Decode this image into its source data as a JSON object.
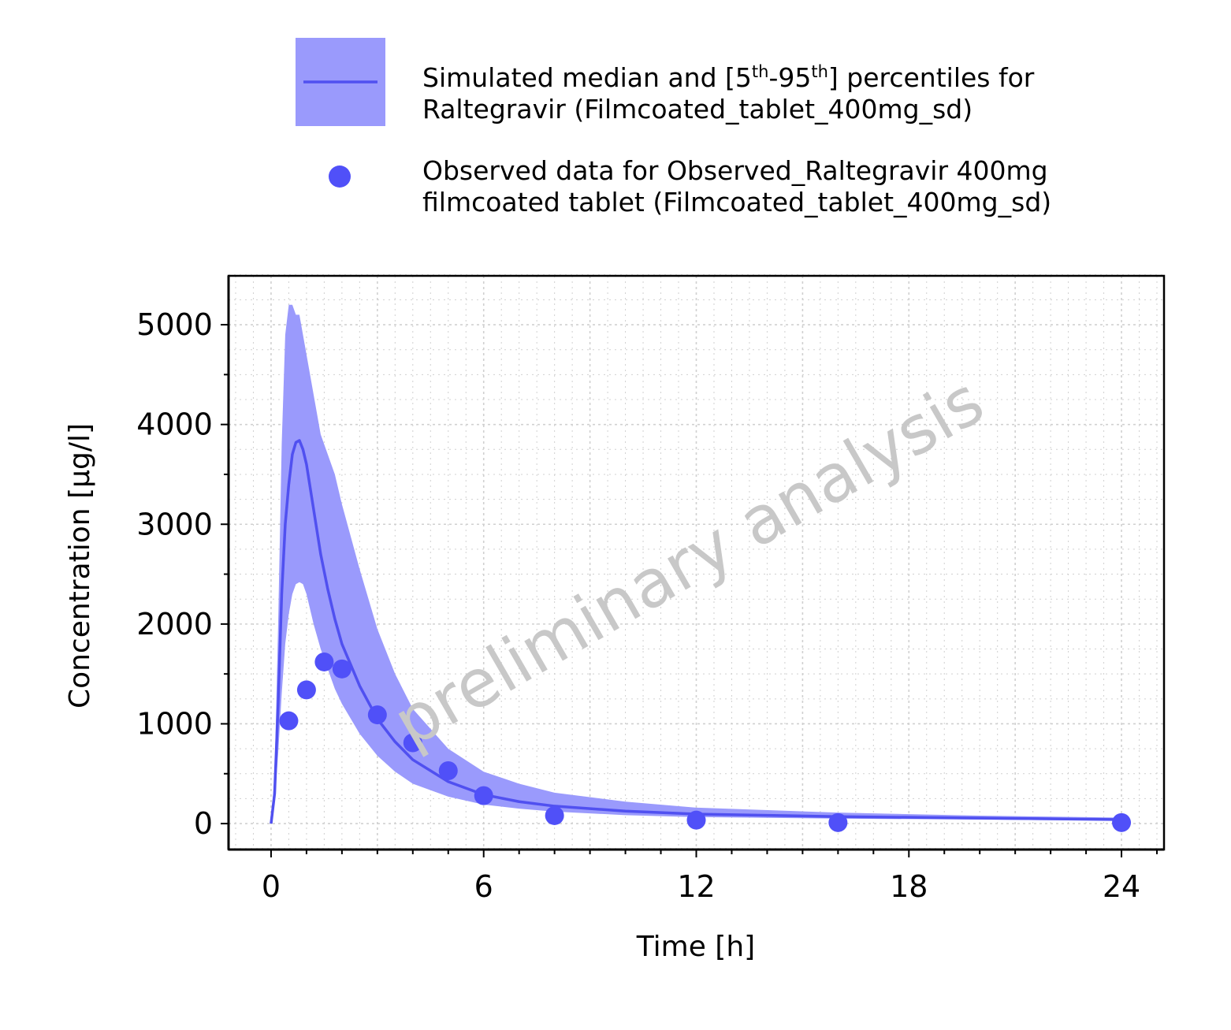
{
  "chart_data": {
    "type": "line",
    "xlabel": "Time [h]",
    "ylabel": "Concentration [µg/l]",
    "xlim": [
      -1.2,
      25.2
    ],
    "ylim": [
      -260,
      5490
    ],
    "x_ticks": [
      0,
      6,
      12,
      18,
      24
    ],
    "y_ticks": [
      0,
      1000,
      2000,
      3000,
      4000,
      5000
    ],
    "grid": true,
    "legend_position": "top",
    "watermark": "preliminary analysis",
    "legend": [
      {
        "kind": "band-line",
        "text_lines": [
          "Simulated median and [5",
          "th",
          "-95",
          "th",
          "] percentiles for",
          "Raltegravir (Filmcoated_tablet_400mg_sd)"
        ]
      },
      {
        "kind": "point",
        "text_lines": [
          "Observed data for Observed_Raltegravir 400mg",
          "filmcoated tablet (Filmcoated_tablet_400mg_sd)"
        ]
      }
    ],
    "colors": {
      "line": "#5050f0",
      "band": "#9a9afc",
      "points": "#5050f8",
      "grid": "#d0d0d0"
    },
    "series": [
      {
        "kind": "median",
        "x": [
          0,
          0.1,
          0.2,
          0.3,
          0.4,
          0.5,
          0.6,
          0.7,
          0.8,
          0.9,
          1.0,
          1.2,
          1.4,
          1.6,
          1.8,
          2.0,
          2.5,
          3.0,
          3.5,
          4.0,
          5.0,
          6.0,
          7.0,
          8.0,
          10.0,
          12.0,
          16.0,
          20.0,
          24.0
        ],
        "y": [
          0,
          300,
          1200,
          2300,
          3000,
          3400,
          3700,
          3820,
          3840,
          3750,
          3600,
          3150,
          2700,
          2350,
          2050,
          1800,
          1380,
          1050,
          820,
          640,
          420,
          290,
          220,
          175,
          125,
          95,
          70,
          55,
          40
        ]
      },
      {
        "kind": "p95",
        "x": [
          0,
          0.1,
          0.2,
          0.3,
          0.4,
          0.5,
          0.6,
          0.7,
          0.8,
          0.9,
          1.0,
          1.2,
          1.4,
          1.6,
          1.8,
          2.0,
          2.5,
          3.0,
          3.5,
          4.0,
          5.0,
          6.0,
          7.0,
          8.0,
          10.0,
          12.0,
          16.0,
          20.0,
          24.0
        ],
        "y": [
          0,
          500,
          2000,
          3800,
          4900,
          5200,
          5200,
          5100,
          5100,
          4900,
          4700,
          4300,
          3900,
          3700,
          3500,
          3200,
          2550,
          1950,
          1500,
          1150,
          750,
          520,
          400,
          310,
          220,
          160,
          110,
          80,
          60
        ]
      },
      {
        "kind": "p5",
        "x": [
          0,
          0.1,
          0.2,
          0.3,
          0.4,
          0.5,
          0.6,
          0.7,
          0.8,
          0.9,
          1.0,
          1.2,
          1.4,
          1.6,
          1.8,
          2.0,
          2.5,
          3.0,
          3.5,
          4.0,
          5.0,
          6.0,
          7.0,
          8.0,
          10.0,
          12.0,
          16.0,
          20.0,
          24.0
        ],
        "y": [
          0,
          200,
          700,
          1300,
          1800,
          2100,
          2300,
          2400,
          2420,
          2400,
          2300,
          2000,
          1750,
          1550,
          1350,
          1200,
          900,
          680,
          520,
          400,
          270,
          190,
          150,
          120,
          85,
          65,
          50,
          40,
          30
        ]
      },
      {
        "kind": "observed",
        "x": [
          0.5,
          1.0,
          1.5,
          2.0,
          3.0,
          4.0,
          5.0,
          6.0,
          8.0,
          12.0,
          16.0,
          24.0
        ],
        "y": [
          1030,
          1340,
          1620,
          1550,
          1090,
          810,
          530,
          280,
          80,
          35,
          10,
          10
        ]
      }
    ]
  }
}
